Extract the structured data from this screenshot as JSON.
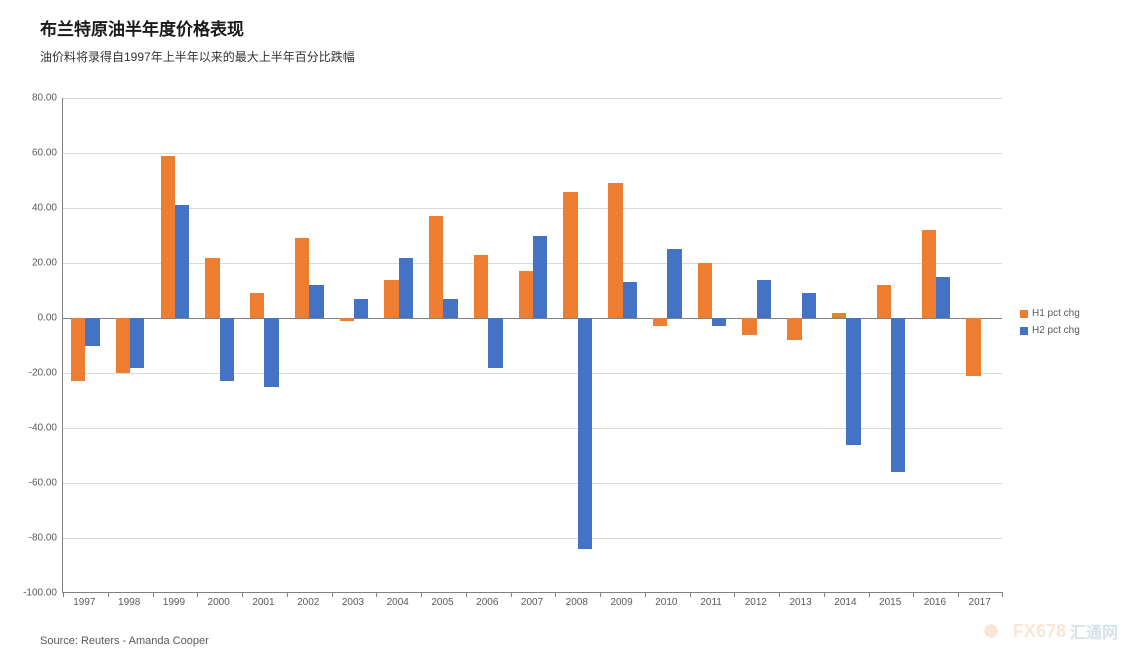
{
  "title": "布兰特原油半年度价格表现",
  "title_fontsize": 17,
  "title_color": "#1a1a1a",
  "subtitle": "油价料将录得自1997年上半年以来的最大上半年百分比跌幅",
  "subtitle_fontsize": 12,
  "subtitle_color": "#333333",
  "source": "Source: Reuters - Amanda Cooper",
  "chart": {
    "type": "bar",
    "ylim": [
      -100,
      80
    ],
    "ytick_step": 20,
    "yticks": [
      "80.00",
      "60.00",
      "40.00",
      "20.00",
      "0.00",
      "-20.00",
      "-40.00",
      "-60.00",
      "-80.00",
      "-100.00"
    ],
    "ytick_values": [
      80,
      60,
      40,
      20,
      0,
      -20,
      -40,
      -60,
      -80,
      -100
    ],
    "categories": [
      "1997",
      "1998",
      "1999",
      "2000",
      "2001",
      "2002",
      "2003",
      "2004",
      "2005",
      "2006",
      "2007",
      "2008",
      "2009",
      "2010",
      "2011",
      "2012",
      "2013",
      "2014",
      "2015",
      "2016",
      "2017"
    ],
    "series": [
      {
        "name": "H1 pct chg",
        "color": "#ed7d31",
        "values": [
          -23,
          -20,
          59,
          22,
          9,
          29,
          -1,
          14,
          37,
          23,
          17,
          46,
          49,
          -3,
          20,
          -6,
          -8,
          2,
          12,
          32,
          -21
        ]
      },
      {
        "name": "H2 pct chg",
        "color": "#4472c4",
        "values": [
          -10,
          -18,
          41,
          -23,
          -25,
          12,
          7,
          22,
          7,
          -18,
          30,
          -84,
          13,
          25,
          -3,
          14,
          9,
          -46,
          -56,
          15,
          null
        ]
      }
    ],
    "bar_width_ratio": 0.32,
    "grid_color": "#d9d9d9",
    "axis_color": "#808080",
    "background_color": "#ffffff",
    "label_fontsize": 10,
    "label_color": "#595959"
  },
  "legend": {
    "items": [
      {
        "label": "H1 pct chg",
        "color": "#ed7d31"
      },
      {
        "label": "H2 pct chg",
        "color": "#4472c4"
      }
    ]
  },
  "watermark": {
    "fx": "FX678",
    "cn": "汇通网"
  }
}
